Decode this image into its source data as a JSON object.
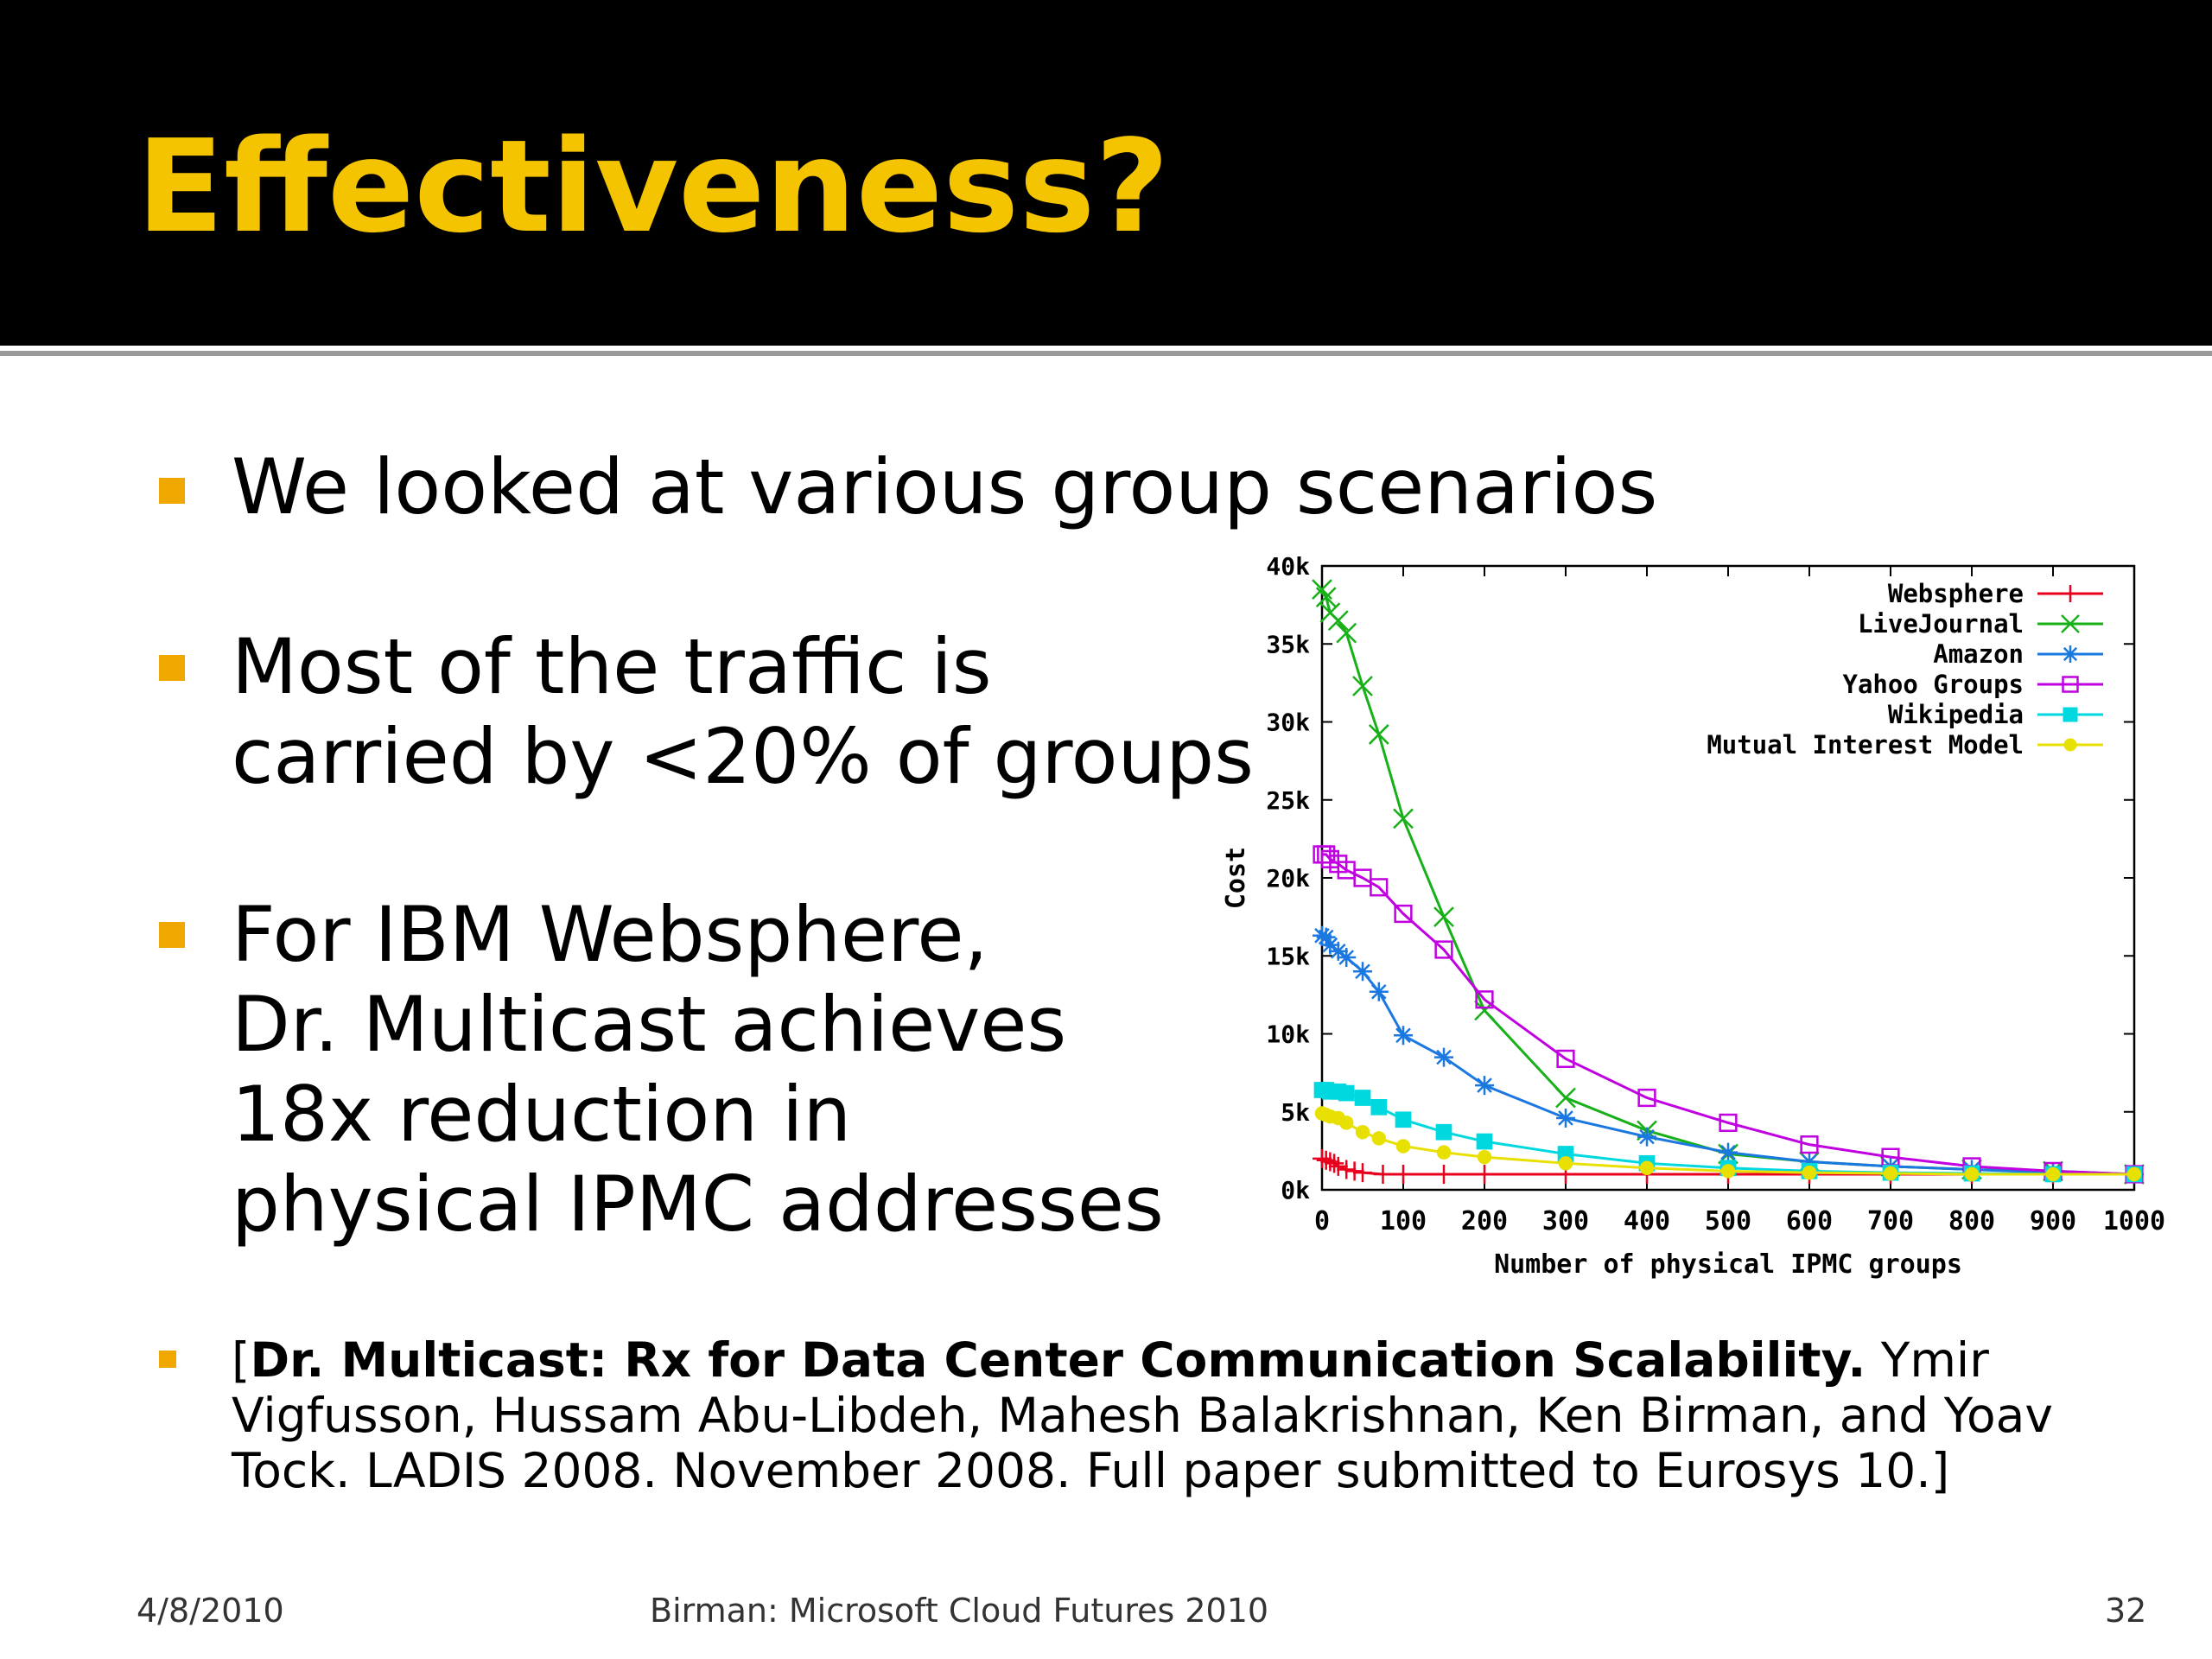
{
  "slide": {
    "title": "Effectiveness?",
    "bullets": [
      {
        "lines": [
          "We looked at various group scenarios"
        ]
      },
      {
        "lines": [
          "Most of the traffic is",
          "carried by <20% of groups"
        ]
      },
      {
        "lines": [
          "For IBM Websphere,",
          "Dr. Multicast achieves",
          "18x reduction in",
          "physical IPMC addresses"
        ]
      }
    ],
    "citation": {
      "open": "[",
      "bold": "Dr. Multicast: Rx for Data Center Communication Scalability.",
      "rest": "  Ymir Vigfusson, Hussam Abu-Libdeh, Mahesh Balakrishnan, Ken Birman, and Yoav Tock.  LADIS 2008.  November 2008.  Full paper submitted to Eurosys 10.]"
    },
    "footer": {
      "date": "4/8/2010",
      "center": "Birman: Microsoft Cloud Futures 2010",
      "page": "32"
    },
    "colors": {
      "title": "#f5c400",
      "bullet": "#f0a800",
      "header_bg": "#000000"
    }
  },
  "chart_data": {
    "type": "line",
    "xlabel": "Number of physical IPMC groups",
    "ylabel": "Cost",
    "xlim": [
      0,
      1000
    ],
    "ylim": [
      0,
      40000
    ],
    "xticks": [
      0,
      100,
      200,
      300,
      400,
      500,
      600,
      700,
      800,
      900,
      1000
    ],
    "xtick_labels": [
      "0",
      "100",
      "200",
      "300",
      "400",
      "500",
      "600",
      "700",
      "800",
      "900",
      "1000"
    ],
    "yticks": [
      0,
      5000,
      10000,
      15000,
      20000,
      25000,
      30000,
      35000,
      40000
    ],
    "ytick_labels": [
      "0k",
      "5k",
      "10k",
      "15k",
      "20k",
      "25k",
      "30k",
      "35k",
      "40k"
    ],
    "legend_position": "top-right",
    "grid": false,
    "series": [
      {
        "name": "Websphere",
        "color": "#e8001c",
        "marker": "plus",
        "x": [
          0,
          5,
          10,
          15,
          20,
          30,
          40,
          50,
          75,
          100,
          150,
          200,
          300,
          400,
          500,
          600,
          700,
          800,
          900,
          1000
        ],
        "y": [
          2000,
          1900,
          1800,
          1700,
          1500,
          1300,
          1200,
          1100,
          1000,
          1000,
          1000,
          1000,
          1000,
          1000,
          1000,
          1000,
          1000,
          1000,
          1000,
          1000
        ]
      },
      {
        "name": "LiveJournal",
        "color": "#18b018",
        "marker": "x",
        "x": [
          0,
          5,
          10,
          20,
          30,
          50,
          70,
          100,
          150,
          200,
          300,
          400,
          500,
          600,
          700,
          800,
          900,
          1000
        ],
        "y": [
          38500,
          38000,
          37000,
          36500,
          35700,
          32300,
          29200,
          23800,
          17500,
          11500,
          5900,
          3800,
          2300,
          1800,
          1500,
          1300,
          1200,
          1000
        ]
      },
      {
        "name": "Amazon",
        "color": "#1a78e0",
        "marker": "star",
        "x": [
          0,
          5,
          10,
          20,
          30,
          50,
          70,
          100,
          150,
          200,
          300,
          400,
          500,
          600,
          700,
          800,
          900,
          1000
        ],
        "y": [
          16300,
          16200,
          15700,
          15300,
          14900,
          14000,
          12700,
          9900,
          8500,
          6700,
          4600,
          3400,
          2400,
          1800,
          1500,
          1300,
          1100,
          1000
        ]
      },
      {
        "name": "Yahoo Groups",
        "color": "#c000e0",
        "marker": "square",
        "x": [
          0,
          5,
          10,
          20,
          30,
          50,
          70,
          100,
          150,
          200,
          300,
          400,
          500,
          600,
          700,
          800,
          900,
          1000
        ],
        "y": [
          21500,
          21500,
          21200,
          20900,
          20500,
          20000,
          19400,
          17700,
          15400,
          12200,
          8400,
          5900,
          4300,
          2900,
          2100,
          1500,
          1200,
          1000
        ]
      },
      {
        "name": "Wikipedia",
        "color": "#00d8e0",
        "marker": "filled-square",
        "x": [
          0,
          5,
          10,
          20,
          30,
          50,
          70,
          100,
          150,
          200,
          300,
          400,
          500,
          600,
          700,
          800,
          900,
          1000
        ],
        "y": [
          6400,
          6400,
          6300,
          6300,
          6200,
          5900,
          5300,
          4500,
          3700,
          3100,
          2300,
          1700,
          1400,
          1200,
          1100,
          1050,
          1000,
          1000
        ]
      },
      {
        "name": "Mutual Interest Model",
        "color": "#e8e000",
        "marker": "filled-circle",
        "x": [
          0,
          5,
          10,
          20,
          30,
          50,
          70,
          100,
          150,
          200,
          300,
          400,
          500,
          600,
          700,
          800,
          900,
          1000
        ],
        "y": [
          4900,
          4800,
          4700,
          4600,
          4300,
          3700,
          3300,
          2800,
          2400,
          2100,
          1700,
          1400,
          1200,
          1100,
          1050,
          1000,
          1000,
          1000
        ]
      }
    ]
  }
}
